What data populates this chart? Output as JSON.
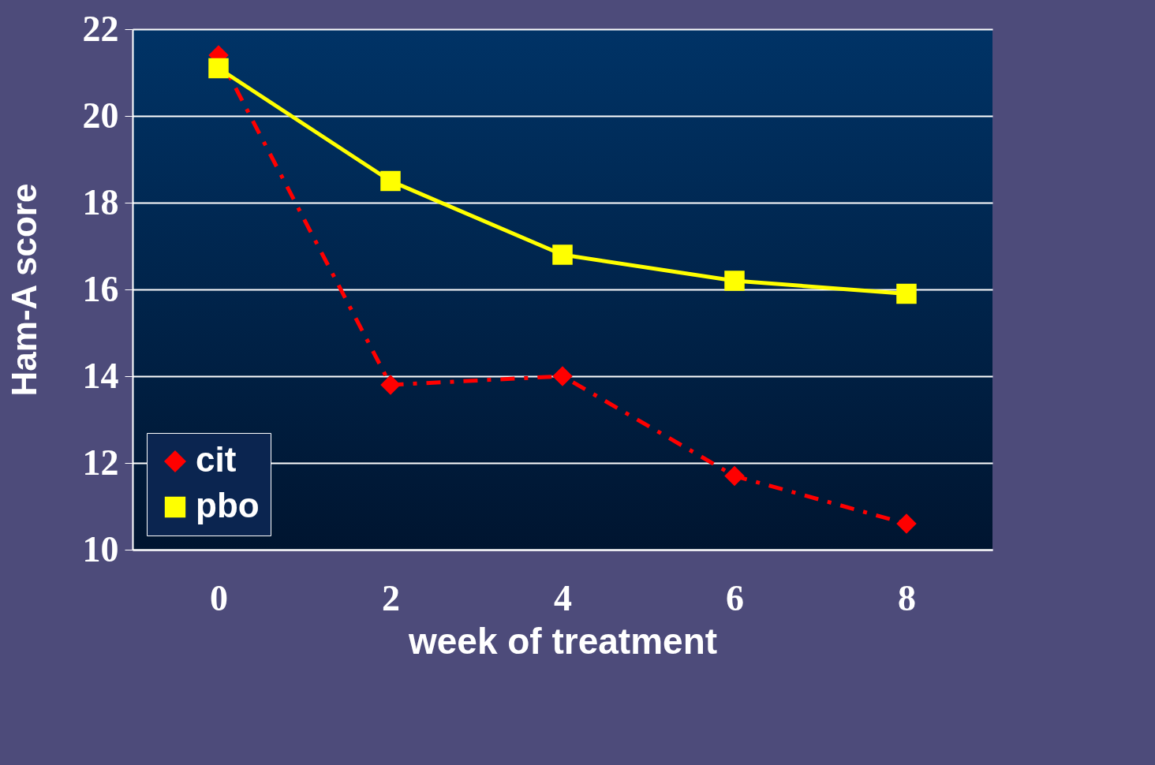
{
  "chart_data": {
    "type": "line",
    "xlabel": "week of treatment",
    "ylabel": "Ham-A score",
    "categories": [
      "0",
      "2",
      "4",
      "6",
      "8"
    ],
    "series": [
      {
        "name": "cit",
        "color": "#ff0000",
        "marker": "diamond",
        "line_style": "dashed",
        "values": [
          21.4,
          13.8,
          14.0,
          11.7,
          10.6
        ]
      },
      {
        "name": "pbo",
        "color": "#ffff00",
        "marker": "square",
        "line_style": "solid",
        "values": [
          21.1,
          18.5,
          16.8,
          16.2,
          15.9
        ]
      }
    ],
    "ylim": [
      10,
      22
    ],
    "yticks": [
      10,
      12,
      14,
      16,
      18,
      20,
      22
    ],
    "grid": "y",
    "legend": "bottom left"
  }
}
